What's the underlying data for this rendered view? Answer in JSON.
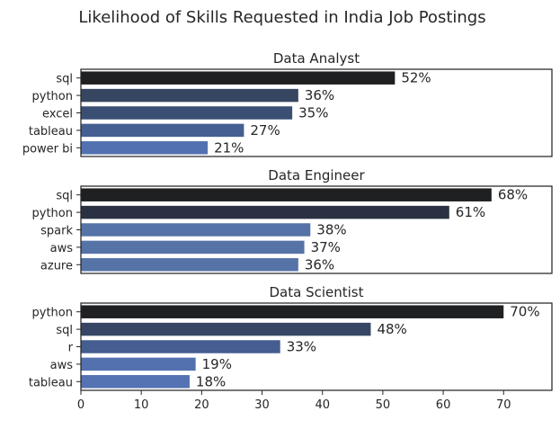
{
  "title": "Likelihood of Skills Requested in India Job Postings",
  "chart_data": [
    {
      "type": "bar",
      "orientation": "horizontal",
      "title": "Data Analyst",
      "categories": [
        "sql",
        "python",
        "excel",
        "tableau",
        "power bi"
      ],
      "values": [
        52,
        36,
        35,
        27,
        21
      ],
      "labels": [
        "52%",
        "36%",
        "35%",
        "27%",
        "21%"
      ],
      "colors": [
        "#1f2022",
        "#374660",
        "#3b4f75",
        "#455f92",
        "#5271b1"
      ],
      "xlim": [
        0,
        78
      ],
      "show_xticks": false
    },
    {
      "type": "bar",
      "orientation": "horizontal",
      "title": "Data Engineer",
      "categories": [
        "sql",
        "python",
        "spark",
        "aws",
        "azure"
      ],
      "values": [
        68,
        61,
        38,
        37,
        36
      ],
      "labels": [
        "68%",
        "61%",
        "38%",
        "37%",
        "36%"
      ],
      "colors": [
        "#1f2022",
        "#2a3142",
        "#5573a6",
        "#5573a6",
        "#5573a6"
      ],
      "xlim": [
        0,
        78
      ],
      "show_xticks": false
    },
    {
      "type": "bar",
      "orientation": "horizontal",
      "title": "Data Scientist",
      "categories": [
        "python",
        "sql",
        "r",
        "aws",
        "tableau"
      ],
      "values": [
        70,
        48,
        33,
        19,
        18
      ],
      "labels": [
        "70%",
        "48%",
        "33%",
        "19%",
        "18%"
      ],
      "colors": [
        "#1f2022",
        "#384665",
        "#455d90",
        "#5370af",
        "#5572b2"
      ],
      "xlim": [
        0,
        78
      ],
      "show_xticks": true,
      "xticks": [
        0,
        10,
        20,
        30,
        40,
        50,
        60,
        70
      ]
    }
  ]
}
